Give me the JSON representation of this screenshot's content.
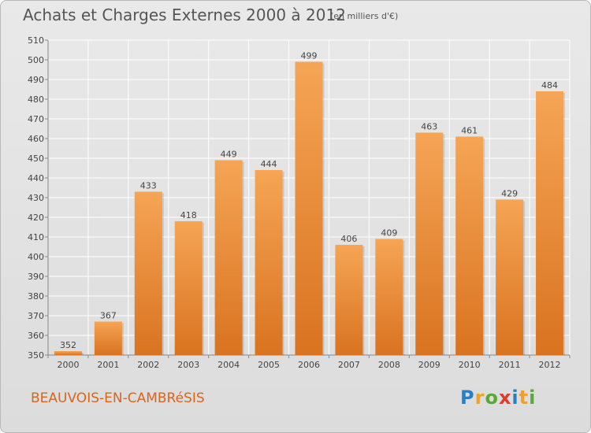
{
  "title": "Achats et Charges Externes 2000 à 2012",
  "subtitle": "(en milliers d'€)",
  "place": "BEAUVOIS-EN-CAMBRéSIS",
  "logo": {
    "letters": [
      {
        "ch": "P",
        "color": "#2a7fc4"
      },
      {
        "ch": "r",
        "color": "#f0a12a"
      },
      {
        "ch": "o",
        "color": "#5aa83a"
      },
      {
        "ch": "x",
        "color": "#e03a2c"
      },
      {
        "ch": "i",
        "color": "#2a7fc4"
      },
      {
        "ch": "t",
        "color": "#f0a12a"
      },
      {
        "ch": "i",
        "color": "#5aa83a"
      }
    ]
  },
  "colors": {
    "bar_top": "#f5a555",
    "bar_bottom": "#d97320",
    "place_text": "#d9651c",
    "title_text": "#555555"
  },
  "chart_data": {
    "type": "bar",
    "categories": [
      "2000",
      "2001",
      "2002",
      "2003",
      "2004",
      "2005",
      "2006",
      "2007",
      "2008",
      "2009",
      "2010",
      "2011",
      "2012"
    ],
    "values": [
      352,
      367,
      433,
      418,
      449,
      444,
      499,
      406,
      409,
      463,
      461,
      429,
      484
    ],
    "ylim": [
      350,
      510
    ],
    "yticks": [
      350,
      360,
      370,
      380,
      390,
      400,
      410,
      420,
      430,
      440,
      450,
      460,
      470,
      480,
      490,
      500,
      510
    ],
    "grid": true,
    "xlabel": "",
    "ylabel": ""
  }
}
